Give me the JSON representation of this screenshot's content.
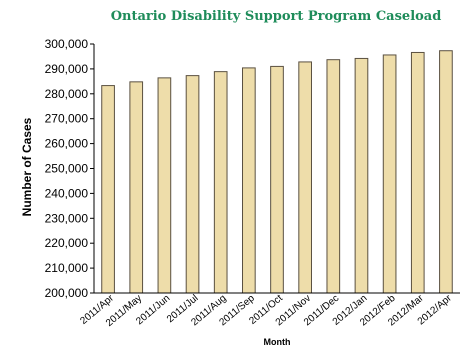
{
  "chart_data": {
    "type": "bar",
    "title": "Ontario Disability Support Program Caseload",
    "xlabel": "Month",
    "ylabel": "Number of Cases",
    "categories": [
      "2011/Apr",
      "2011/May",
      "2011/Jun",
      "2011/Jul",
      "2011/Aug",
      "2011/Sep",
      "2011/Oct",
      "2011/Nov",
      "2011/Dec",
      "2012/Jan",
      "2012/Feb",
      "2012/Mar",
      "2012/Apr"
    ],
    "values": [
      283300,
      284800,
      286400,
      287300,
      288900,
      290400,
      291000,
      292800,
      293700,
      294200,
      295600,
      296600,
      297300
    ],
    "ylim": [
      200000,
      300000
    ],
    "yticks": [
      "200,000",
      "210,000",
      "220,000",
      "230,000",
      "240,000",
      "250,000",
      "260,000",
      "270,000",
      "280,000",
      "290,000",
      "300,000"
    ],
    "colors": {
      "bar_fill": "#EEDDAA",
      "bar_stroke": "#5A5040",
      "title": "#1E8C5A",
      "axis": "#000000"
    },
    "grid": false,
    "legend": "none"
  }
}
